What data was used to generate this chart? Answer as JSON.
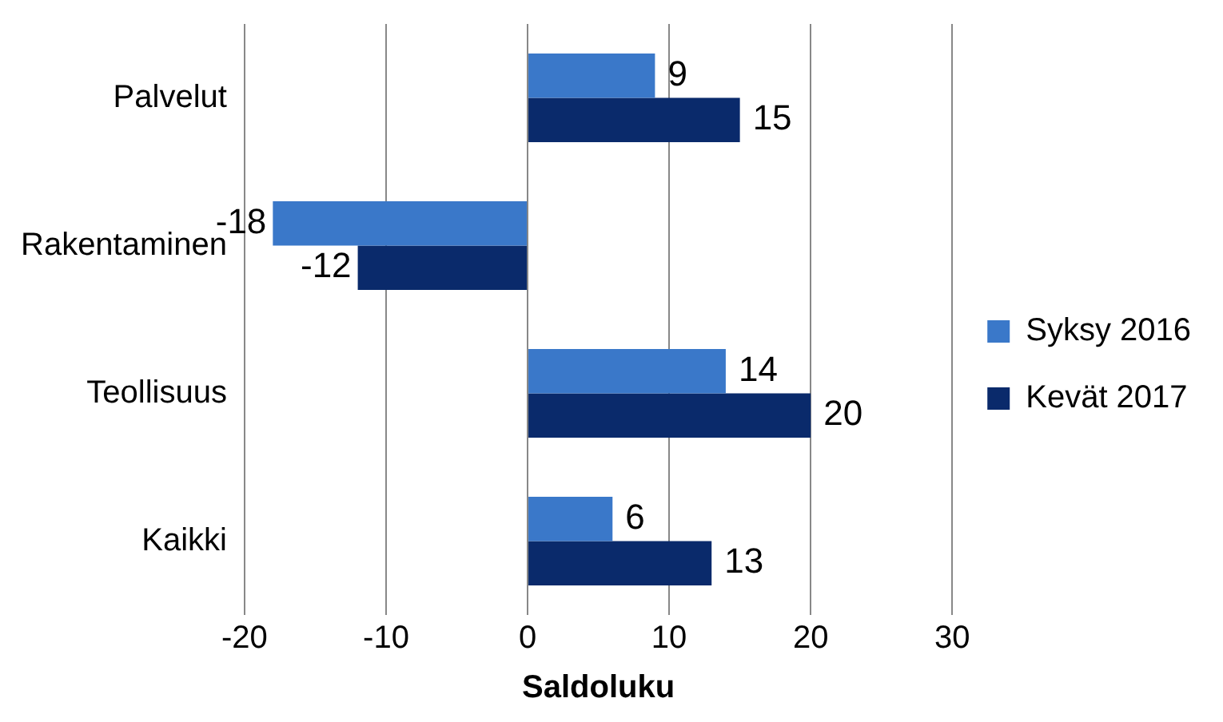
{
  "chart_data": {
    "type": "bar",
    "orientation": "horizontal",
    "xlabel": "Saldoluku",
    "categories": [
      "Palvelut",
      "Rakentaminen",
      "Teollisuus",
      "Kaikki"
    ],
    "series": [
      {
        "name": "Syksy 2016",
        "color": "#3a78c9",
        "values": [
          9,
          -18,
          14,
          6
        ]
      },
      {
        "name": "Kevät 2017",
        "color": "#0a2a6b",
        "values": [
          15,
          -12,
          20,
          13
        ]
      }
    ],
    "xlim": [
      -20,
      30
    ],
    "xticks": [
      -20,
      -10,
      0,
      10,
      20,
      30
    ],
    "grid": "x",
    "legend": "right",
    "data_labels": true
  }
}
